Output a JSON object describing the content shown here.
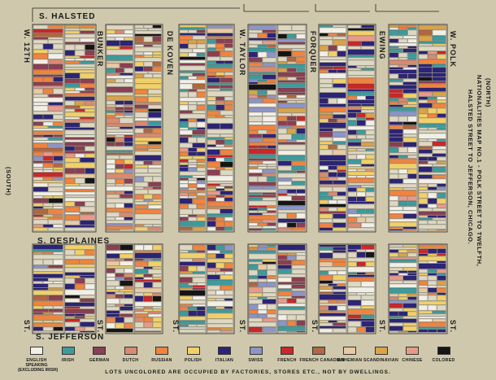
{
  "streets": {
    "halsted": "S. HALSTED",
    "desplaines": "S. DESPLAINES",
    "jefferson": "S. JEFFERSON",
    "w12th": "W. 12TH",
    "bunker": "BUNKER",
    "dekoven": "DE KOVEN",
    "taylor": "W. TAYLOR",
    "forquer": "FORQUER",
    "ewing": "EWING",
    "polk": "W. POLK",
    "st": "ST."
  },
  "side_notes": {
    "south": "(SOUTH)",
    "north": "(NORTH)",
    "title_line1": "NATIONALITIES MAP NO.1 - POLK STREET TO TWELFTH,",
    "title_line2": "HALSTED STREET TO JEFFERSON, CHICAGO."
  },
  "legend": [
    {
      "label": "ENGLISH",
      "sub1": "SPEAKING",
      "sub2": "(EXCLUDING IRISH)",
      "color": "#f2efe6"
    },
    {
      "label": "IRISH",
      "color": "#3f9a9c"
    },
    {
      "label": "GERMAN",
      "color": "#8a3f52"
    },
    {
      "label": "DUTCH",
      "color": "#d98a70"
    },
    {
      "label": "RUSSIAN",
      "color": "#ef8440"
    },
    {
      "label": "POLISH",
      "color": "#f1d06a"
    },
    {
      "label": "ITALIAN",
      "color": "#2c2476"
    },
    {
      "label": "SWISS",
      "color": "#8d95c6"
    },
    {
      "label": "FRENCH",
      "color": "#c8282a"
    },
    {
      "label": "FRENCH CANADIAN",
      "color": "#b06840"
    },
    {
      "label": "BOHEMIAN",
      "color": "#e8c9a4"
    },
    {
      "label": "SCANDINAVIAN",
      "color": "#d9a34a"
    },
    {
      "label": "CHINESE",
      "color": "#e89a8a"
    },
    {
      "label": "COLORED",
      "color": "#151515"
    }
  ],
  "footnote": "LOTS UNCOLORED ARE OCCUPIED BY FACTORIES, STORES ETC., NOT BY DWELLINGS."
}
